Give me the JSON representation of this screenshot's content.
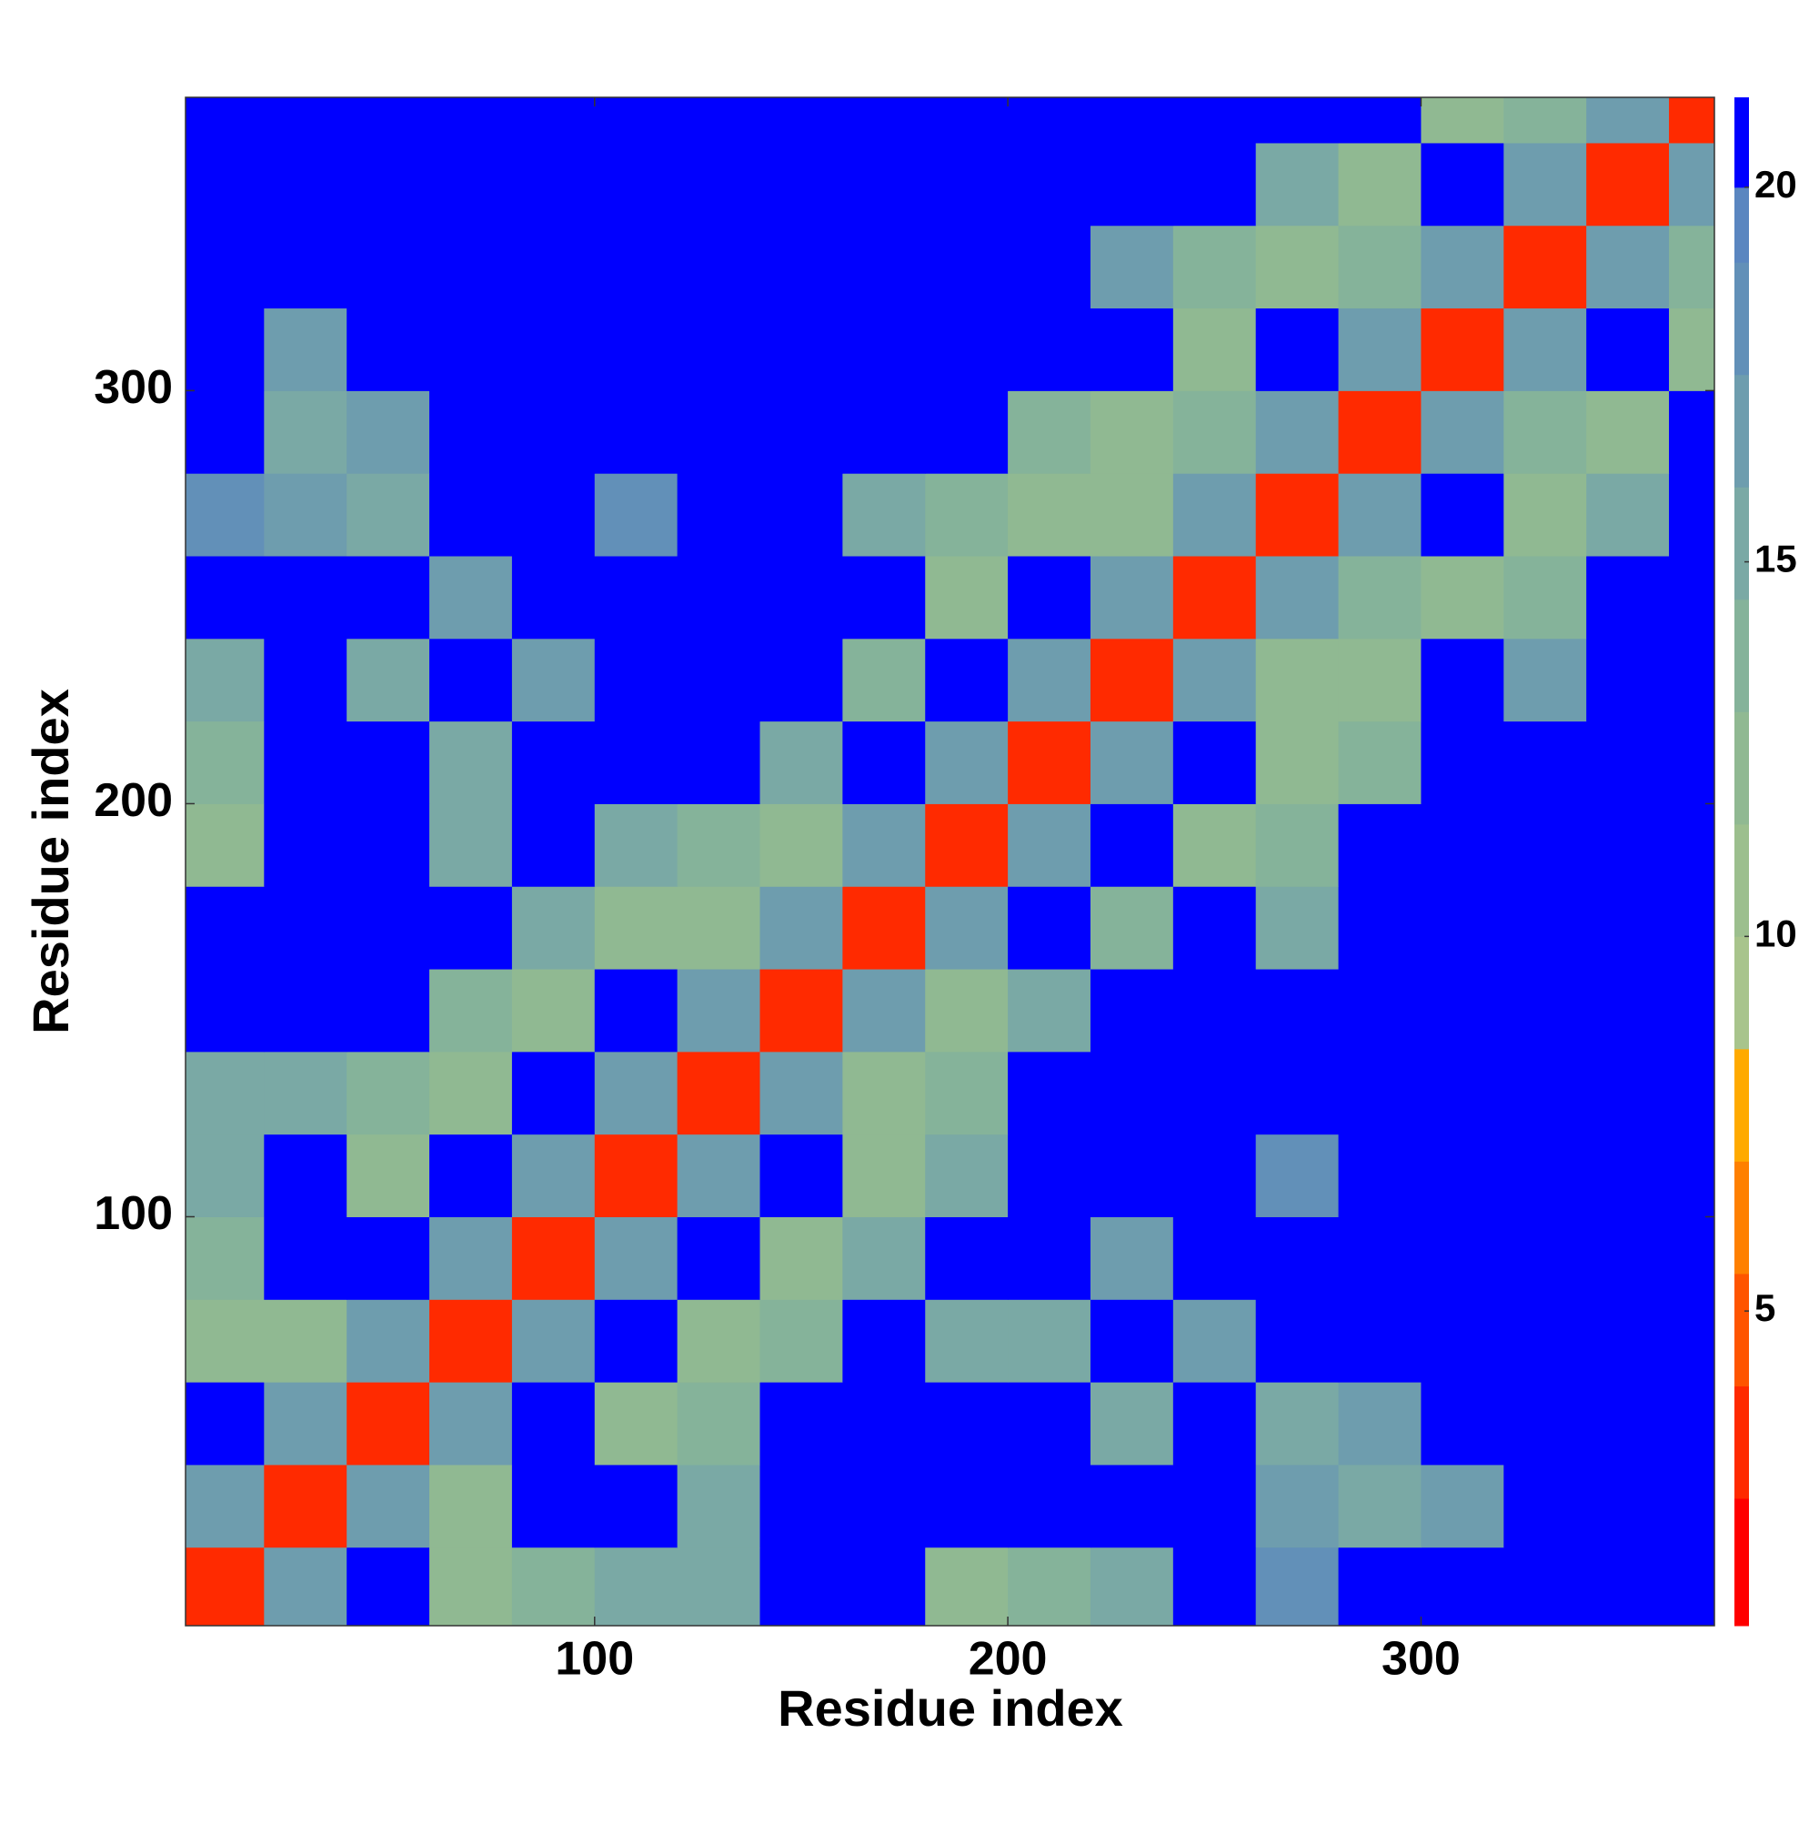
{
  "chart_data": {
    "type": "heatmap",
    "xlabel": "Residue index",
    "ylabel": "Residue index",
    "x": [
      10,
      30,
      50,
      70,
      90,
      110,
      130,
      150,
      170,
      190,
      210,
      230,
      250,
      270,
      290,
      310,
      330,
      350,
      370
    ],
    "y": [
      10,
      30,
      50,
      70,
      90,
      110,
      130,
      150,
      170,
      190,
      210,
      230,
      250,
      270,
      290,
      310,
      330,
      350,
      370
    ],
    "cell_size": 20,
    "values": [
      [
        3,
        17,
        21,
        12,
        14,
        15,
        16,
        21,
        21,
        13,
        14,
        16,
        21,
        18,
        21,
        21,
        21,
        21,
        21
      ],
      [
        17,
        3,
        17,
        12,
        21,
        21,
        15,
        21,
        21,
        21,
        21,
        21,
        21,
        17,
        16,
        17,
        21,
        21,
        21
      ],
      [
        21,
        17,
        3,
        17,
        21,
        12,
        14,
        21,
        21,
        21,
        21,
        15,
        21,
        16,
        17,
        21,
        21,
        21,
        21
      ],
      [
        12,
        12,
        17,
        3,
        17,
        21,
        13,
        14,
        21,
        15,
        16,
        21,
        17,
        21,
        21,
        21,
        21,
        21,
        21
      ],
      [
        14,
        21,
        21,
        17,
        3,
        17,
        21,
        12,
        15,
        21,
        21,
        17,
        21,
        21,
        21,
        21,
        21,
        21,
        21
      ],
      [
        15,
        21,
        12,
        21,
        17,
        3,
        17,
        21,
        12,
        15,
        21,
        21,
        21,
        18,
        21,
        21,
        21,
        21,
        21
      ],
      [
        16,
        15,
        14,
        13,
        21,
        17,
        3,
        17,
        12,
        14,
        21,
        21,
        21,
        21,
        21,
        21,
        21,
        21,
        21
      ],
      [
        21,
        21,
        21,
        14,
        12,
        21,
        17,
        3,
        17,
        13,
        16,
        21,
        21,
        21,
        21,
        21,
        21,
        21,
        21
      ],
      [
        21,
        21,
        21,
        21,
        15,
        12,
        12,
        17,
        3,
        17,
        21,
        14,
        21,
        15,
        21,
        21,
        21,
        21,
        21
      ],
      [
        13,
        21,
        21,
        15,
        21,
        15,
        14,
        13,
        17,
        3,
        17,
        21,
        13,
        14,
        21,
        21,
        21,
        21,
        21
      ],
      [
        14,
        21,
        21,
        16,
        21,
        21,
        21,
        16,
        21,
        17,
        3,
        17,
        21,
        12,
        14,
        21,
        21,
        21,
        21
      ],
      [
        16,
        21,
        15,
        21,
        17,
        21,
        21,
        21,
        14,
        21,
        17,
        3,
        17,
        13,
        12,
        21,
        17,
        21,
        21
      ],
      [
        21,
        21,
        21,
        17,
        21,
        21,
        21,
        21,
        21,
        13,
        21,
        17,
        3,
        17,
        14,
        12,
        14,
        21,
        21
      ],
      [
        18,
        17,
        16,
        21,
        21,
        18,
        21,
        21,
        15,
        14,
        12,
        13,
        17,
        3,
        17,
        21,
        13,
        15,
        21
      ],
      [
        21,
        16,
        17,
        21,
        21,
        21,
        21,
        21,
        21,
        21,
        14,
        12,
        14,
        17,
        3,
        17,
        14,
        12,
        21
      ],
      [
        21,
        17,
        21,
        21,
        21,
        21,
        21,
        21,
        21,
        21,
        21,
        21,
        12,
        21,
        17,
        3,
        17,
        21,
        13
      ],
      [
        21,
        21,
        21,
        21,
        21,
        21,
        21,
        21,
        21,
        21,
        21,
        17,
        14,
        13,
        14,
        17,
        3,
        17,
        14
      ],
      [
        21,
        21,
        21,
        21,
        21,
        21,
        21,
        21,
        21,
        21,
        21,
        21,
        21,
        15,
        12,
        21,
        17,
        3,
        17
      ],
      [
        21,
        21,
        21,
        21,
        21,
        21,
        21,
        21,
        21,
        21,
        21,
        21,
        21,
        21,
        21,
        13,
        14,
        17,
        3
      ]
    ],
    "xlim": [
      1,
      371
    ],
    "ylim": [
      1,
      371
    ],
    "xticks": [
      100,
      200,
      300
    ],
    "yticks": [
      100,
      200,
      300
    ],
    "levels": [
      0.8,
      2.5,
      4,
      5.5,
      7,
      8.5,
      10,
      11.5,
      13,
      14.5,
      16,
      17.5,
      19,
      20,
      21.2
    ],
    "colors": [
      "#ff0000",
      "#ff2a00",
      "#ff5500",
      "#ff8000",
      "#ffaa00",
      "#a8c48c",
      "#9cbf8e",
      "#90b992",
      "#85b39a",
      "#7aa9a5",
      "#6e9dae",
      "#6290b8",
      "#5a86c0",
      "#0000ff"
    ],
    "colorbar_ticks": [
      5,
      10,
      15,
      20
    ]
  }
}
